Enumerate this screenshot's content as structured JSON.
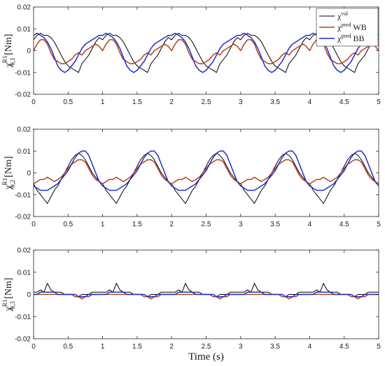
{
  "chart_data": [
    {
      "type": "line",
      "ylabel_main": "χ",
      "ylabel_sup": "R1",
      "ylabel_sub": "0,1",
      "ylabel_unit": " [Nm]",
      "xlim": [
        0,
        5
      ],
      "ylim": [
        -0.02,
        0.02
      ],
      "xticks": [
        0,
        0.5,
        1,
        1.5,
        2,
        2.5,
        3,
        3.5,
        4,
        4.5,
        5
      ],
      "xticklabels": [
        "0",
        "0.5",
        "1",
        "1.5",
        "2",
        "2.5",
        "3",
        "3.5",
        "4",
        "4.5",
        "5"
      ],
      "yticks": [
        -0.02,
        -0.01,
        0,
        0.01,
        0.02
      ],
      "yticklabels": [
        "-0.02",
        "-0.01",
        "0",
        "0.01",
        "0.02"
      ],
      "legend": [
        {
          "base": "χ",
          "sup": "val",
          "suffix": "",
          "color": "#000000"
        },
        {
          "base": "χ",
          "sup": "pred",
          "suffix": " WB",
          "color": "#b5401f"
        },
        {
          "base": "χ",
          "sup": "pred",
          "suffix": " BB",
          "color": "#1f2fc4"
        }
      ],
      "legend_position": "top-right",
      "period": 1.0,
      "series": [
        {
          "color": "#000000",
          "x": [
            0,
            0.05,
            0.1,
            0.15,
            0.2,
            0.25,
            0.3,
            0.35,
            0.4,
            0.45,
            0.5,
            0.55,
            0.6,
            0.65,
            0.7,
            0.75,
            0.8,
            0.85,
            0.9,
            0.95,
            1.0
          ],
          "y": [
            0.005,
            0.007,
            0.008,
            0.007,
            0.007,
            0.006,
            0.004,
            0.001,
            -0.002,
            -0.005,
            -0.007,
            -0.008,
            -0.009,
            -0.01,
            -0.006,
            -0.004,
            -0.002,
            0.001,
            0.004,
            0.006,
            0.005
          ]
        },
        {
          "color": "#b5401f",
          "x": [
            0,
            0.05,
            0.1,
            0.15,
            0.2,
            0.25,
            0.3,
            0.35,
            0.4,
            0.45,
            0.5,
            0.55,
            0.6,
            0.65,
            0.7,
            0.75,
            0.8,
            0.85,
            0.9,
            0.95,
            1.0
          ],
          "y": [
            0.0,
            0.003,
            0.005,
            0.005,
            0.003,
            -0.001,
            -0.004,
            -0.005,
            -0.006,
            -0.006,
            -0.005,
            -0.004,
            -0.002,
            -0.001,
            -0.002,
            0.0,
            0.001,
            0.002,
            0.003,
            0.002,
            0.0
          ]
        },
        {
          "color": "#1f2fc4",
          "x": [
            0,
            0.05,
            0.1,
            0.15,
            0.2,
            0.25,
            0.3,
            0.35,
            0.4,
            0.45,
            0.5,
            0.55,
            0.6,
            0.65,
            0.7,
            0.75,
            0.8,
            0.85,
            0.9,
            0.95,
            1.0
          ],
          "y": [
            0.007,
            0.008,
            0.007,
            0.006,
            0.004,
            0.001,
            -0.003,
            -0.007,
            -0.009,
            -0.01,
            -0.009,
            -0.007,
            -0.005,
            -0.002,
            0.001,
            0.003,
            0.004,
            0.005,
            0.006,
            0.007,
            0.007
          ]
        }
      ]
    },
    {
      "type": "line",
      "ylabel_main": "χ",
      "ylabel_sup": "R1",
      "ylabel_sub": "0,2",
      "ylabel_unit": " [Nm]",
      "xlim": [
        0,
        5
      ],
      "ylim": [
        -0.02,
        0.02
      ],
      "xticks": [
        0,
        0.5,
        1,
        1.5,
        2,
        2.5,
        3,
        3.5,
        4,
        4.5,
        5
      ],
      "xticklabels": [
        "0",
        "0.5",
        "1",
        "1.5",
        "2",
        "2.5",
        "3",
        "3.5",
        "4",
        "4.5",
        "5"
      ],
      "yticks": [
        -0.02,
        -0.01,
        0,
        0.01,
        0.02
      ],
      "yticklabels": [
        "-0.02",
        "-0.01",
        "0",
        "0.01",
        "0.02"
      ],
      "period": 1.0,
      "series": [
        {
          "color": "#000000",
          "x": [
            0,
            0.05,
            0.1,
            0.15,
            0.2,
            0.25,
            0.3,
            0.35,
            0.4,
            0.45,
            0.5,
            0.55,
            0.6,
            0.65,
            0.7,
            0.75,
            0.8,
            0.85,
            0.9,
            0.95,
            1.0
          ],
          "y": [
            -0.005,
            -0.008,
            -0.01,
            -0.012,
            -0.014,
            -0.011,
            -0.008,
            -0.006,
            -0.003,
            0.0,
            0.003,
            0.006,
            0.008,
            0.009,
            0.008,
            0.006,
            0.003,
            0.0,
            -0.002,
            -0.004,
            -0.005
          ]
        },
        {
          "color": "#b5401f",
          "x": [
            0,
            0.05,
            0.1,
            0.15,
            0.2,
            0.25,
            0.3,
            0.35,
            0.4,
            0.45,
            0.5,
            0.55,
            0.6,
            0.65,
            0.7,
            0.75,
            0.8,
            0.85,
            0.9,
            0.95,
            1.0
          ],
          "y": [
            -0.005,
            -0.004,
            -0.003,
            -0.003,
            -0.002,
            -0.003,
            -0.004,
            -0.003,
            -0.002,
            0.0,
            0.002,
            0.004,
            0.005,
            0.006,
            0.006,
            0.005,
            0.002,
            -0.001,
            -0.003,
            -0.004,
            -0.005
          ]
        },
        {
          "color": "#1f2fc4",
          "x": [
            0,
            0.05,
            0.1,
            0.15,
            0.2,
            0.25,
            0.3,
            0.35,
            0.4,
            0.45,
            0.5,
            0.55,
            0.6,
            0.65,
            0.7,
            0.75,
            0.8,
            0.85,
            0.9,
            0.95,
            1.0
          ],
          "y": [
            -0.006,
            -0.007,
            -0.008,
            -0.008,
            -0.008,
            -0.007,
            -0.006,
            -0.005,
            -0.003,
            -0.001,
            0.001,
            0.004,
            0.007,
            0.009,
            0.01,
            0.01,
            0.008,
            0.004,
            0.0,
            -0.004,
            -0.006
          ]
        }
      ]
    },
    {
      "type": "line",
      "ylabel_main": "χ",
      "ylabel_sup": "R1",
      "ylabel_sub": "0,3",
      "ylabel_unit": " [Nm]",
      "xlim": [
        0,
        5
      ],
      "ylim": [
        -0.02,
        0.02
      ],
      "xticks": [
        0,
        0.5,
        1,
        1.5,
        2,
        2.5,
        3,
        3.5,
        4,
        4.5,
        5
      ],
      "xticklabels": [
        "0",
        "0.5",
        "1",
        "1.5",
        "2",
        "2.5",
        "3",
        "3.5",
        "4",
        "4.5",
        "5"
      ],
      "yticks": [
        -0.02,
        -0.01,
        0,
        0.01,
        0.02
      ],
      "yticklabels": [
        "-0.02",
        "-0.01",
        "0",
        "0.01",
        "0.02"
      ],
      "xlabel": "Time (s)",
      "period": 1.0,
      "series": [
        {
          "color": "#000000",
          "x": [
            0,
            0.05,
            0.1,
            0.15,
            0.2,
            0.25,
            0.3,
            0.35,
            0.4,
            0.45,
            0.5,
            0.55,
            0.6,
            0.65,
            0.7,
            0.75,
            0.8,
            0.85,
            0.9,
            0.95,
            1.0
          ],
          "y": [
            0.001,
            0.001,
            0.002,
            0.001,
            0.005,
            0.002,
            0.001,
            0.001,
            0.001,
            0.0,
            0.0,
            0.0,
            0.0,
            -0.001,
            0.0,
            0.0,
            0.0,
            0.001,
            0.001,
            0.001,
            0.001
          ]
        },
        {
          "color": "#b5401f",
          "x": [
            0,
            0.05,
            0.1,
            0.15,
            0.2,
            0.25,
            0.3,
            0.35,
            0.4,
            0.45,
            0.5,
            0.55,
            0.6,
            0.65,
            0.7,
            0.75,
            0.8,
            0.85,
            0.9,
            0.95,
            1.0
          ],
          "y": [
            0.0,
            0.0,
            0.0,
            0.0,
            0.0,
            0.0,
            0.0,
            0.0,
            0.0,
            0.0,
            0.0,
            0.0,
            -0.001,
            -0.001,
            -0.002,
            -0.001,
            -0.001,
            0.0,
            0.0,
            0.0,
            0.0
          ]
        },
        {
          "color": "#1f2fc4",
          "x": [
            0,
            0.05,
            0.1,
            0.15,
            0.2,
            0.25,
            0.3,
            0.35,
            0.4,
            0.45,
            0.5,
            0.55,
            0.6,
            0.65,
            0.7,
            0.75,
            0.8,
            0.85,
            0.9,
            0.95,
            1.0
          ],
          "y": [
            0.0,
            0.0,
            0.001,
            0.001,
            0.001,
            0.001,
            0.001,
            0.0,
            0.0,
            0.0,
            0.0,
            0.0,
            0.0,
            -0.001,
            -0.001,
            -0.001,
            0.0,
            0.0,
            0.0,
            0.0,
            0.0
          ]
        }
      ]
    }
  ]
}
